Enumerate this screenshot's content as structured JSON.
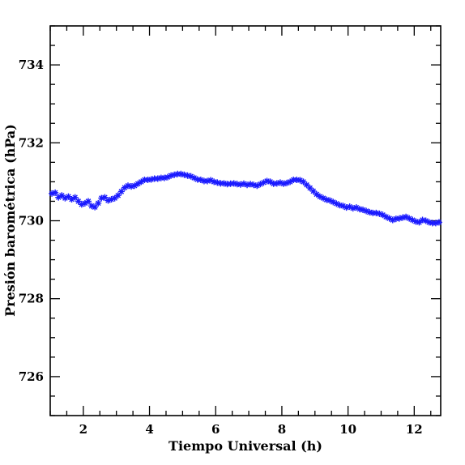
{
  "chart_data": {
    "type": "scatter",
    "title": "",
    "xlabel": "Tiempo Universal (h)",
    "ylabel": "Presión barométrica (hPa)",
    "xlim": [
      1,
      12.8
    ],
    "ylim": [
      725,
      735
    ],
    "xticks": [
      2,
      4,
      6,
      8,
      10,
      12
    ],
    "yticks": [
      726,
      728,
      730,
      732,
      734
    ],
    "grid": false,
    "legend": "none",
    "marker": "star",
    "color": "#1a1aff",
    "series": [
      {
        "x": [
          1.05,
          1.15,
          1.25,
          1.35,
          1.45,
          1.55,
          1.65,
          1.75,
          1.85,
          1.95,
          2.05,
          2.15,
          2.25,
          2.35,
          2.45,
          2.55,
          2.65,
          2.75,
          2.85,
          2.95,
          3.05,
          3.15,
          3.25,
          3.35,
          3.45,
          3.55,
          3.65,
          3.75,
          3.85,
          3.95,
          4.05,
          4.15,
          4.25,
          4.35,
          4.45,
          4.55,
          4.65,
          4.75,
          4.85,
          4.95,
          5.05,
          5.15,
          5.25,
          5.35,
          5.45,
          5.55,
          5.65,
          5.75,
          5.85,
          5.95,
          6.05,
          6.15,
          6.25,
          6.35,
          6.45,
          6.55,
          6.65,
          6.75,
          6.85,
          6.95,
          7.05,
          7.15,
          7.25,
          7.35,
          7.45,
          7.55,
          7.65,
          7.75,
          7.85,
          7.95,
          8.05,
          8.15,
          8.25,
          8.35,
          8.45,
          8.55,
          8.65,
          8.75,
          8.85,
          8.95,
          9.05,
          9.15,
          9.25,
          9.35,
          9.45,
          9.55,
          9.65,
          9.75,
          9.85,
          9.95,
          10.05,
          10.15,
          10.25,
          10.35,
          10.45,
          10.55,
          10.65,
          10.75,
          10.85,
          10.95,
          11.05,
          11.15,
          11.25,
          11.35,
          11.45,
          11.55,
          11.65,
          11.75,
          11.85,
          11.95,
          12.05,
          12.15,
          12.25,
          12.35,
          12.45,
          12.55,
          12.65,
          12.75
        ],
        "y": [
          730.7,
          730.72,
          730.6,
          730.65,
          730.58,
          730.62,
          730.55,
          730.6,
          730.5,
          730.42,
          730.45,
          730.5,
          730.38,
          730.35,
          730.45,
          730.58,
          730.6,
          730.52,
          730.55,
          730.58,
          730.65,
          730.75,
          730.85,
          730.9,
          730.88,
          730.9,
          730.95,
          731.0,
          731.05,
          731.05,
          731.06,
          731.08,
          731.08,
          731.1,
          731.1,
          731.12,
          731.16,
          731.18,
          731.2,
          731.2,
          731.18,
          731.16,
          731.14,
          731.1,
          731.06,
          731.05,
          731.02,
          731.02,
          731.04,
          731.0,
          730.98,
          730.96,
          730.96,
          730.94,
          730.95,
          730.96,
          730.94,
          730.93,
          730.95,
          730.92,
          730.94,
          730.92,
          730.9,
          730.94,
          730.98,
          731.02,
          731.0,
          730.95,
          730.96,
          730.98,
          730.95,
          730.97,
          731.0,
          731.05,
          731.05,
          731.04,
          731.0,
          730.92,
          730.84,
          730.76,
          730.68,
          730.62,
          730.58,
          730.54,
          730.52,
          730.48,
          730.44,
          730.4,
          730.38,
          730.34,
          730.36,
          730.32,
          730.34,
          730.3,
          730.28,
          730.25,
          730.22,
          730.2,
          730.2,
          730.18,
          730.15,
          730.1,
          730.06,
          730.02,
          730.05,
          730.06,
          730.08,
          730.1,
          730.06,
          730.02,
          729.98,
          729.96,
          730.02,
          730.0,
          729.96,
          729.94,
          729.94,
          729.96
        ]
      }
    ]
  }
}
